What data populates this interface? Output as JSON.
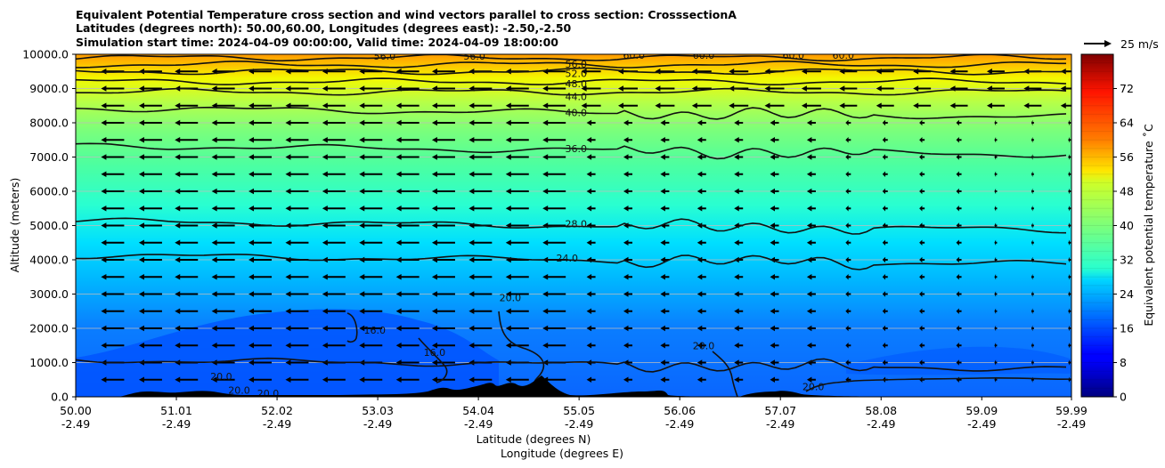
{
  "chart_data": {
    "type": "heatmap",
    "title_lines": [
      "Equivalent Potential Temperature cross section and wind vectors parallel to cross section: CrosssectionA",
      "Latitudes (degrees north): 50.00,60.00, Longitudes (degrees east): -2.50,-2.50",
      "Simulation start time: 2024-04-09 00:00:00, Valid time: 2024-04-09 18:00:00"
    ],
    "ylabel": "Altitude (meters)",
    "xlabel_lat": "Latitude (degrees N)",
    "xlabel_lon": "Longitude (degrees E)",
    "xlim": [
      50.0,
      59.99
    ],
    "ylim": [
      0,
      10000
    ],
    "grid": true,
    "x_tick_values": [
      50.0,
      51.01,
      52.02,
      53.03,
      54.04,
      55.05,
      56.06,
      57.07,
      58.08,
      59.09,
      59.99
    ],
    "x_tick_lat_labels": [
      "50.00",
      "51.01",
      "52.02",
      "53.03",
      "54.04",
      "55.05",
      "56.06",
      "57.07",
      "58.08",
      "59.09",
      "59.99"
    ],
    "x_tick_lon_labels": [
      "-2.49",
      "-2.49",
      "-2.49",
      "-2.49",
      "-2.49",
      "-2.49",
      "-2.49",
      "-2.49",
      "-2.49",
      "-2.49",
      "-2.49"
    ],
    "y_tick_values": [
      0,
      1000,
      2000,
      3000,
      4000,
      5000,
      6000,
      7000,
      8000,
      9000,
      10000
    ],
    "y_tick_labels": [
      "0.0",
      "1000.0",
      "2000.0",
      "3000.0",
      "4000.0",
      "5000.0",
      "6000.0",
      "7000.0",
      "8000.0",
      "9000.0",
      "10000.0"
    ],
    "colorbar": {
      "label": "Equivalent potential temperature $^\\circ$C",
      "label_text": "Equivalent potential temperature ˚C",
      "range": [
        0,
        80
      ],
      "ticks": [
        0,
        8,
        16,
        24,
        32,
        40,
        48,
        56,
        64,
        72
      ],
      "tick_labels": [
        "0",
        "8",
        "16",
        "24",
        "32",
        "40",
        "48",
        "56",
        "64",
        "72"
      ],
      "colormap": "jet",
      "levels": 40
    },
    "quiver_key": {
      "label": "25 m/s",
      "speed_ms": 25
    },
    "contour_levels": [
      {
        "value": 20.0,
        "label": "20.0",
        "alt_m": 950
      },
      {
        "value": 24.0,
        "label": "24.0",
        "alt_m": 4000
      },
      {
        "value": 28.0,
        "label": "28.0",
        "alt_m": 5000
      },
      {
        "value": 36.0,
        "label": "36.0",
        "alt_m": 7200
      },
      {
        "value": 40.0,
        "label": "40.0",
        "alt_m": 8300
      },
      {
        "value": 44.0,
        "label": "44.0",
        "alt_m": 8900
      },
      {
        "value": 48.0,
        "label": "48.0",
        "alt_m": 9200
      },
      {
        "value": 52.0,
        "label": "52.0",
        "alt_m": 9500
      },
      {
        "value": 56.0,
        "label": "56.0",
        "alt_m": 9700
      },
      {
        "value": 60.0,
        "label": "60.0",
        "alt_m": 9900
      }
    ],
    "contour_label_positions": [
      {
        "label": "56.0",
        "lat": 55.02,
        "alt": 9720
      },
      {
        "label": "52.0",
        "lat": 55.02,
        "alt": 9440
      },
      {
        "label": "48.0",
        "lat": 55.02,
        "alt": 9140
      },
      {
        "label": "44.0",
        "lat": 55.02,
        "alt": 8770
      },
      {
        "label": "40.0",
        "lat": 55.02,
        "alt": 8300
      },
      {
        "label": "36.0",
        "lat": 55.02,
        "alt": 7250
      },
      {
        "label": "28.0",
        "lat": 55.02,
        "alt": 5050
      },
      {
        "label": "24.0",
        "lat": 54.93,
        "alt": 4050
      },
      {
        "label": "20.0",
        "lat": 54.36,
        "alt": 2900
      },
      {
        "label": "16.0",
        "lat": 53.0,
        "alt": 1950
      },
      {
        "label": "16.0",
        "lat": 53.6,
        "alt": 1300
      },
      {
        "label": "20.0",
        "lat": 51.46,
        "alt": 600
      },
      {
        "label": "20.0",
        "lat": 51.64,
        "alt": 200
      },
      {
        "label": "20.0",
        "lat": 51.93,
        "alt": 100
      },
      {
        "label": "20.0",
        "lat": 56.3,
        "alt": 1500
      },
      {
        "label": "20.0",
        "lat": 57.4,
        "alt": 300
      },
      {
        "label": "56.0",
        "lat": 53.1,
        "alt": 9950
      },
      {
        "label": "56.0",
        "lat": 54.0,
        "alt": 9950
      },
      {
        "label": "60.0",
        "lat": 55.6,
        "alt": 9980
      },
      {
        "label": "60.0",
        "lat": 56.3,
        "alt": 9980
      },
      {
        "label": "60.0",
        "lat": 57.2,
        "alt": 9980
      },
      {
        "label": "60.0",
        "lat": 57.7,
        "alt": 9980
      }
    ],
    "wind_vectors": {
      "lat_columns": [
        50.37,
        50.75,
        51.11,
        51.48,
        51.85,
        52.22,
        52.59,
        52.96,
        53.33,
        53.69,
        54.06,
        54.43,
        54.8,
        55.17,
        55.54,
        55.91,
        56.28,
        56.65,
        57.01,
        57.38,
        57.75,
        58.12,
        58.49,
        58.86,
        59.23,
        59.6,
        59.97
      ],
      "altitudes_m": [
        500,
        1000,
        1500,
        2000,
        2500,
        3000,
        3500,
        4000,
        4500,
        5000,
        5500,
        6000,
        6500,
        7000,
        7500,
        8000,
        8500,
        9000,
        9500
      ],
      "description": "Southward (leftward) flow everywhere; stronger south of 55.05N and at upper levels"
    }
  }
}
